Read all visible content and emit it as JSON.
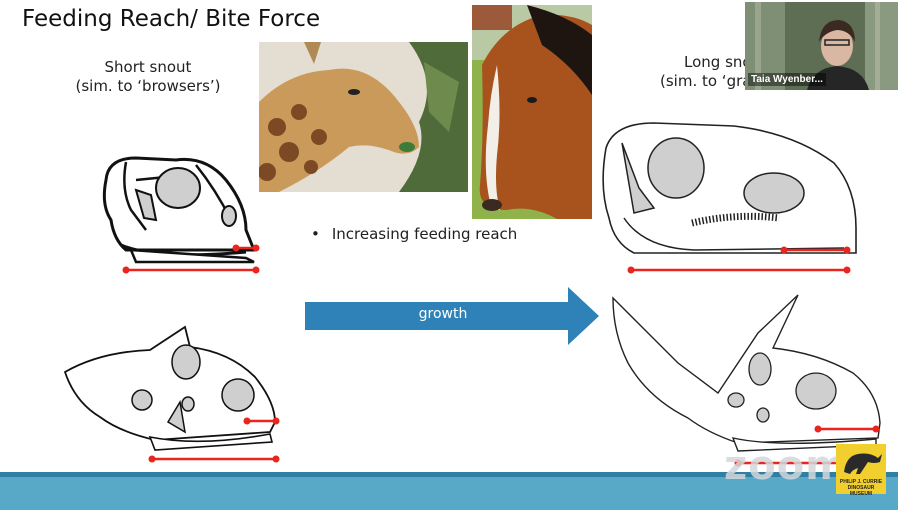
{
  "slide": {
    "title": "Feeding Reach/ Bite Force",
    "short_snout_label_line1": "Short snout",
    "short_snout_label_line2": "(sim. to ‘browsers’)",
    "long_snout_label_line1": "Long sno",
    "long_snout_label_line2": "(sim. to ‘gra",
    "bullet_symbol": "•",
    "bullet_text": "Increasing feeding reach",
    "arrow_label": "growth",
    "arrow_color": "#2f82b8",
    "reach_line_color": "#e8251f"
  },
  "overlay": {
    "webcam_participant_name": "Taia Wyenber...",
    "zoom_watermark": "zoom",
    "museum_logo_text_line1": "PHILIP J. CURRIE",
    "museum_logo_text_line2": "DINOSAUR MUSEUM"
  }
}
